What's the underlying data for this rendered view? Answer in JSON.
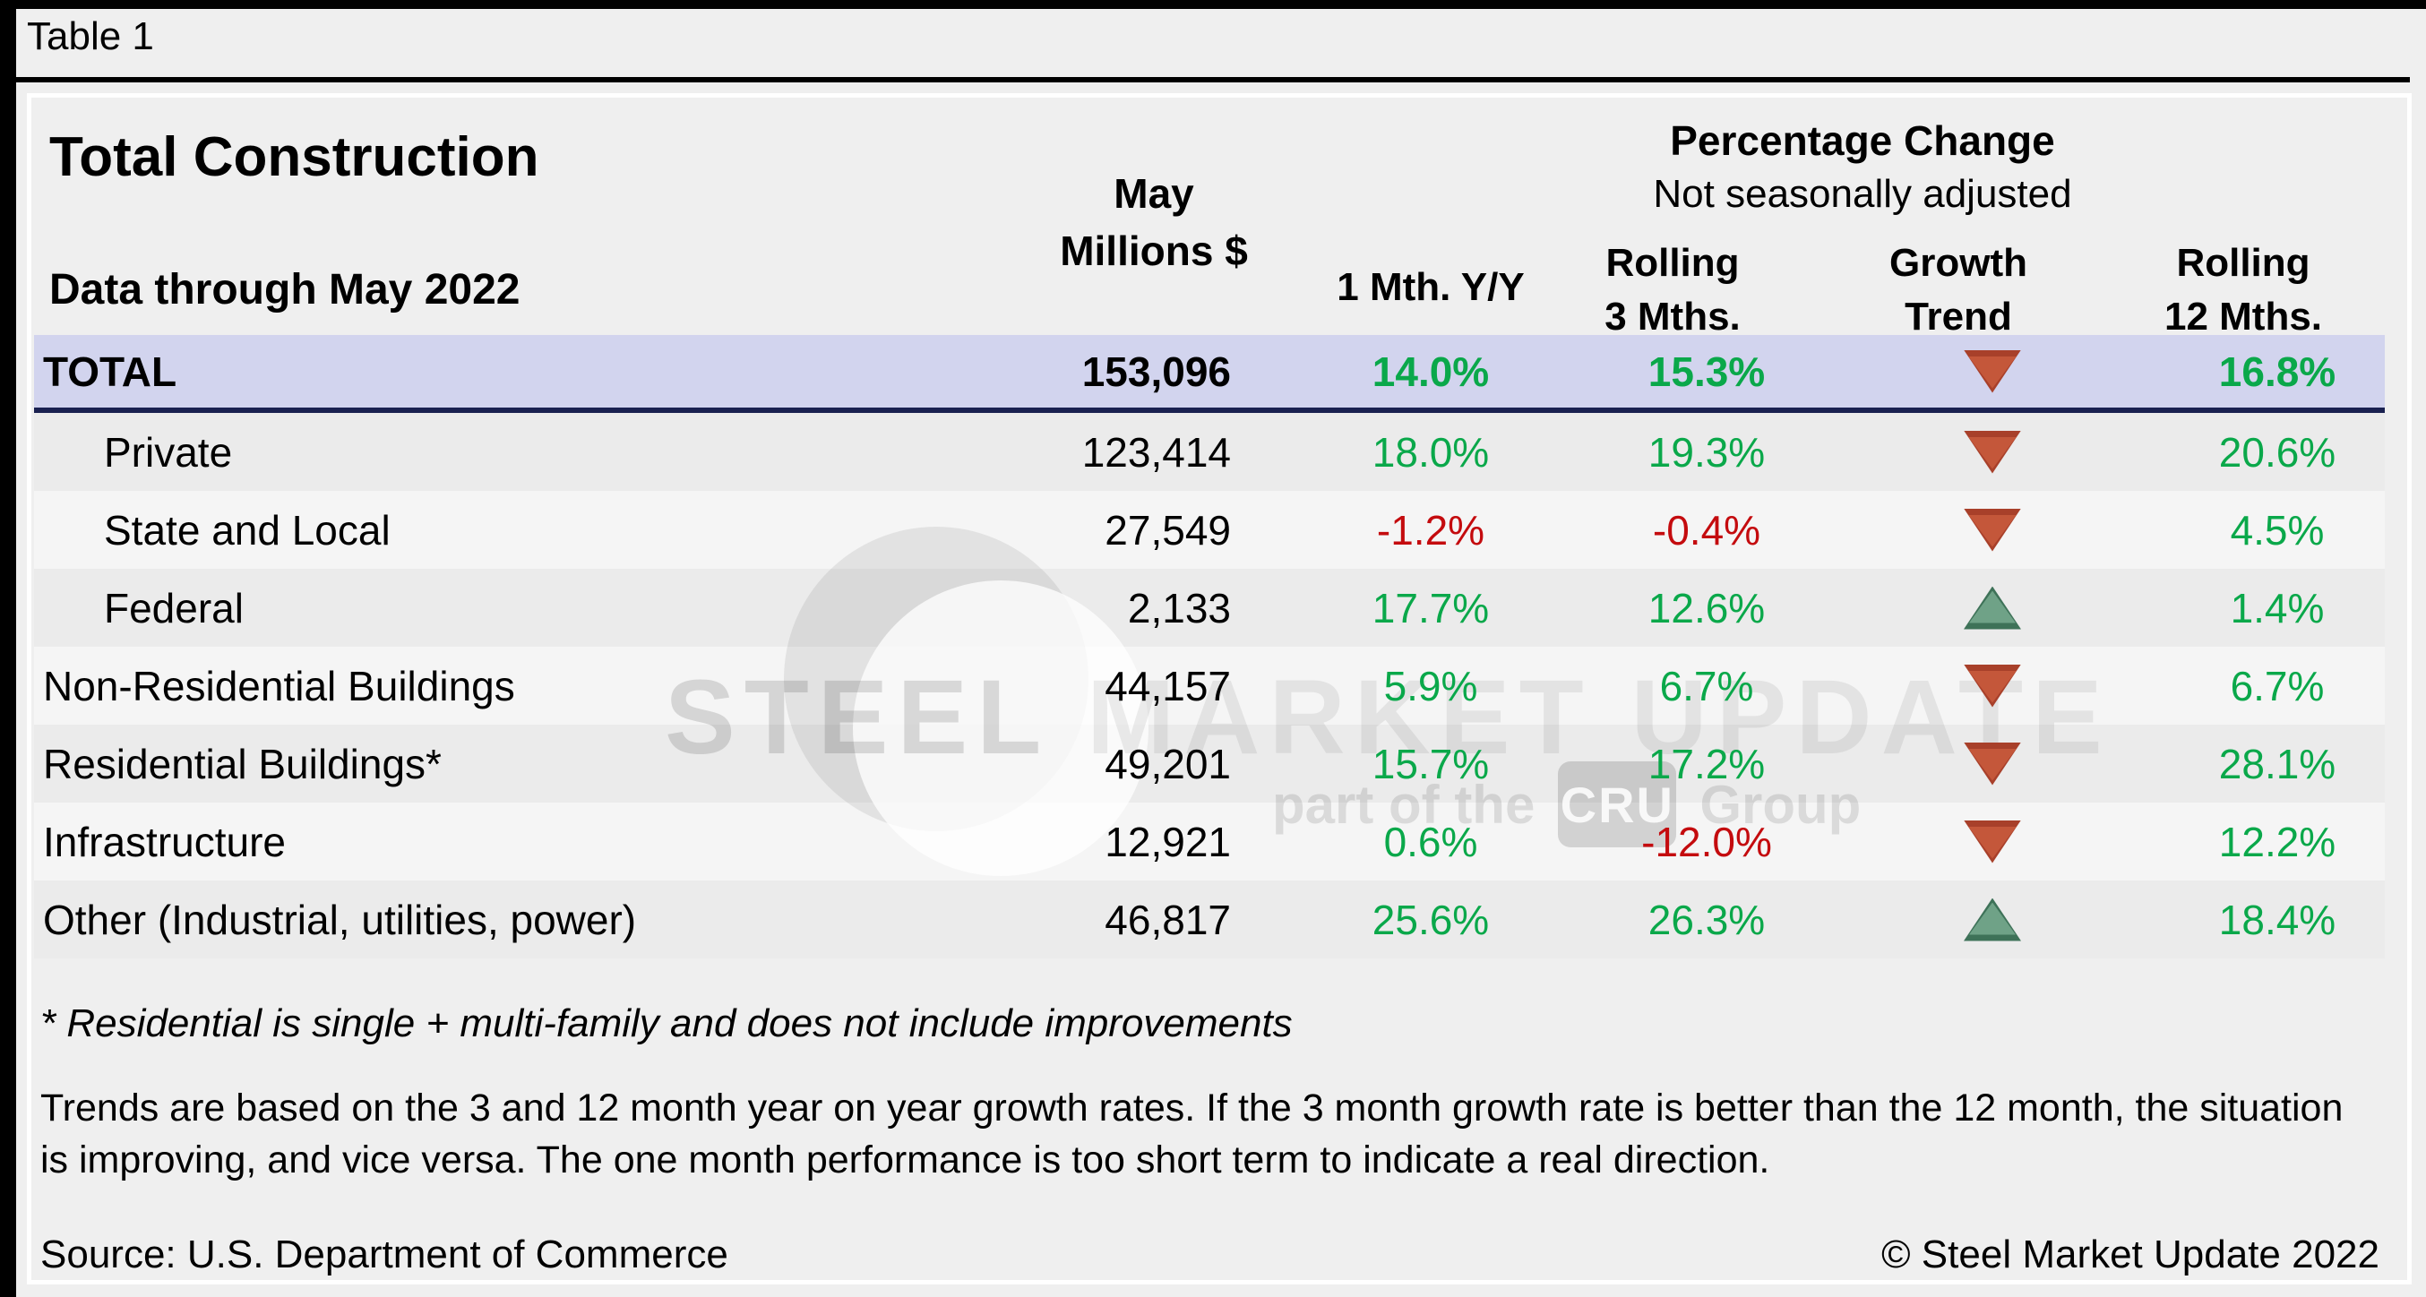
{
  "page": {
    "table_label": "Table 1",
    "title": "Total Construction",
    "subtitle": "Data through May 2022"
  },
  "header": {
    "value_col_line1": "May",
    "value_col_line2": "Millions $",
    "pct_change_title": "Percentage Change",
    "pct_change_subtitle": "Not seasonally adjusted",
    "col_1mth": "1 Mth. Y/Y",
    "col_rolling3_line1": "Rolling",
    "col_rolling3_line2": "3 Mths.",
    "col_trend_line1": "Growth",
    "col_trend_line2": "Trend",
    "col_rolling12_line1": "Rolling",
    "col_rolling12_line2": "12 Mths."
  },
  "rows": [
    {
      "label": "TOTAL",
      "level_class": "lvl0",
      "band": "total",
      "value": "153,096",
      "m1": "14.0%",
      "m1_tone": "pos",
      "r3": "15.3%",
      "r3_tone": "pos",
      "trend": "down",
      "r12": "16.8%",
      "r12_tone": "pos"
    },
    {
      "label": "Private",
      "level_class": "lvl1",
      "band": "dark",
      "value": "123,414",
      "m1": "18.0%",
      "m1_tone": "pos",
      "r3": "19.3%",
      "r3_tone": "pos",
      "trend": "down",
      "r12": "20.6%",
      "r12_tone": "pos"
    },
    {
      "label": "State and Local",
      "level_class": "lvl1",
      "band": "light",
      "value": "27,549",
      "m1": "-1.2%",
      "m1_tone": "neg",
      "r3": "-0.4%",
      "r3_tone": "neg",
      "trend": "down",
      "r12": "4.5%",
      "r12_tone": "pos"
    },
    {
      "label": "Federal",
      "level_class": "lvl1",
      "band": "dark",
      "value": "2,133",
      "m1": "17.7%",
      "m1_tone": "pos",
      "r3": "12.6%",
      "r3_tone": "pos",
      "trend": "up",
      "r12": "1.4%",
      "r12_tone": "pos"
    },
    {
      "label": "Non-Residential Buildings",
      "level_class": "lvl0",
      "band": "light",
      "value": "44,157",
      "m1": "5.9%",
      "m1_tone": "pos",
      "r3": "6.7%",
      "r3_tone": "pos",
      "trend": "down",
      "r12": "6.7%",
      "r12_tone": "pos"
    },
    {
      "label": "Residential Buildings*",
      "level_class": "lvl0",
      "band": "dark",
      "value": "49,201",
      "m1": "15.7%",
      "m1_tone": "pos",
      "r3": "17.2%",
      "r3_tone": "pos",
      "trend": "down",
      "r12": "28.1%",
      "r12_tone": "pos"
    },
    {
      "label": "Infrastructure",
      "level_class": "lvl0",
      "band": "light",
      "value": "12,921",
      "m1": "0.6%",
      "m1_tone": "pos",
      "r3": "-12.0%",
      "r3_tone": "neg",
      "trend": "down",
      "r12": "12.2%",
      "r12_tone": "pos"
    },
    {
      "label": "Other (Industrial, utilities, power)",
      "level_class": "lvl0",
      "band": "dark",
      "value": "46,817",
      "m1": "25.6%",
      "m1_tone": "pos",
      "r3": "26.3%",
      "r3_tone": "pos",
      "trend": "up",
      "r12": "18.4%",
      "r12_tone": "pos"
    }
  ],
  "notes": {
    "footnote": "* Residential is single + multi-family and does not include improvements",
    "trends_line1": "Trends are based on the 3 and 12 month year on year growth rates. If the 3 month growth rate is better than the 12 month, the situation",
    "trends_line2": "is improving, and vice versa. The one month performance is too short term to indicate a real direction."
  },
  "footer": {
    "source": "Source: U.S. Department of Commerce",
    "copyright": "© Steel Market Update 2022"
  },
  "watermark": {
    "word1": "STEEL",
    "word2": " MARKET ",
    "word3": "UPDATE",
    "tagline_prefix": "part of the",
    "cru": "CRU",
    "tagline_suffix": "Group"
  },
  "colors": {
    "positive_green": "#0aa84a",
    "negative_red": "#c40b0e",
    "total_row_highlight": "#d2d4ee",
    "total_row_underline": "#1a2150",
    "down_triangle": "#c4573a",
    "up_triangle": "#6fa287",
    "row_stripe_dark": "#ebebeb",
    "row_stripe_light": "#f5f5f5"
  },
  "chart_data": {
    "type": "table",
    "title": "Total Construction",
    "subtitle": "Data through May 2022",
    "columns": [
      "May Millions $",
      "1 Mth. Y/Y",
      "Rolling 3 Mths.",
      "Growth Trend",
      "Rolling 12 Mths."
    ],
    "rows": [
      {
        "label": "TOTAL",
        "may_millions": 153096,
        "one_mth_yy_pct": 14.0,
        "rolling_3_mths_pct": 15.3,
        "growth_trend": "down",
        "rolling_12_mths_pct": 16.8
      },
      {
        "label": "Private",
        "may_millions": 123414,
        "one_mth_yy_pct": 18.0,
        "rolling_3_mths_pct": 19.3,
        "growth_trend": "down",
        "rolling_12_mths_pct": 20.6
      },
      {
        "label": "State and Local",
        "may_millions": 27549,
        "one_mth_yy_pct": -1.2,
        "rolling_3_mths_pct": -0.4,
        "growth_trend": "down",
        "rolling_12_mths_pct": 4.5
      },
      {
        "label": "Federal",
        "may_millions": 2133,
        "one_mth_yy_pct": 17.7,
        "rolling_3_mths_pct": 12.6,
        "growth_trend": "up",
        "rolling_12_mths_pct": 1.4
      },
      {
        "label": "Non-Residential Buildings",
        "may_millions": 44157,
        "one_mth_yy_pct": 5.9,
        "rolling_3_mths_pct": 6.7,
        "growth_trend": "down",
        "rolling_12_mths_pct": 6.7
      },
      {
        "label": "Residential Buildings*",
        "may_millions": 49201,
        "one_mth_yy_pct": 15.7,
        "rolling_3_mths_pct": 17.2,
        "growth_trend": "down",
        "rolling_12_mths_pct": 28.1
      },
      {
        "label": "Infrastructure",
        "may_millions": 12921,
        "one_mth_yy_pct": 0.6,
        "rolling_3_mths_pct": -12.0,
        "growth_trend": "down",
        "rolling_12_mths_pct": 12.2
      },
      {
        "label": "Other (Industrial, utilities, power)",
        "may_millions": 46817,
        "one_mth_yy_pct": 25.6,
        "rolling_3_mths_pct": 26.3,
        "growth_trend": "up",
        "rolling_12_mths_pct": 18.4
      }
    ]
  }
}
